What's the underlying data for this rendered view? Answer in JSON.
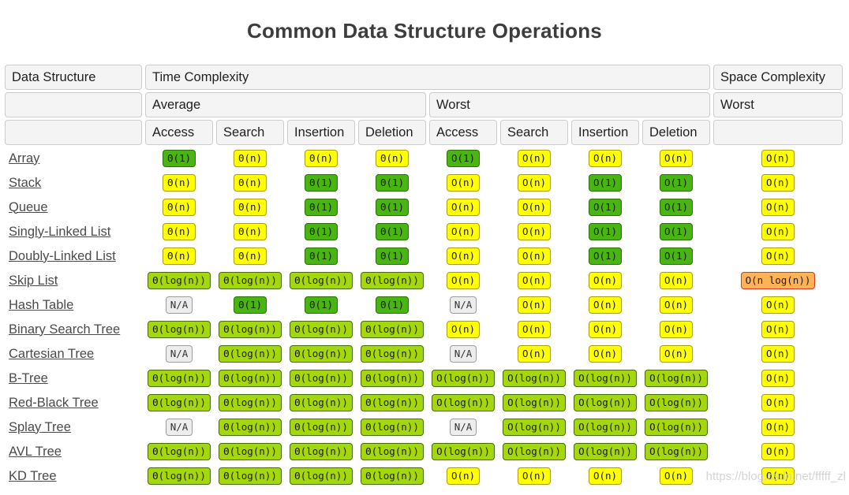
{
  "title": "Common Data Structure Operations",
  "watermark": "https://blog.csdn.net/fffff_zl",
  "colors": {
    "badge_green": "#48b512",
    "badge_yellow": "#ffff00",
    "badge_yellowgreen": "#a5d70e",
    "badge_orange": "#ffb356",
    "badge_na": "#ededed",
    "header_bg": "#f4f4f4",
    "header_border": "#cccccc",
    "link_text": "#4a4a4a",
    "title_text": "#3d3d3d"
  },
  "table": {
    "headers": {
      "data_structure": "Data Structure",
      "time_complexity": "Time Complexity",
      "space_complexity": "Space Complexity",
      "average": "Average",
      "worst": "Worst",
      "space_worst": "Worst",
      "ops": [
        "Access",
        "Search",
        "Insertion",
        "Deletion"
      ]
    },
    "rows": [
      {
        "name": "Array",
        "cells": [
          {
            "t": "Θ(1)",
            "c": "green"
          },
          {
            "t": "Θ(n)",
            "c": "yellow"
          },
          {
            "t": "Θ(n)",
            "c": "yellow"
          },
          {
            "t": "Θ(n)",
            "c": "yellow"
          },
          {
            "t": "O(1)",
            "c": "green"
          },
          {
            "t": "O(n)",
            "c": "yellow"
          },
          {
            "t": "O(n)",
            "c": "yellow"
          },
          {
            "t": "O(n)",
            "c": "yellow"
          },
          {
            "t": "O(n)",
            "c": "yellow"
          }
        ]
      },
      {
        "name": "Stack",
        "cells": [
          {
            "t": "Θ(n)",
            "c": "yellow"
          },
          {
            "t": "Θ(n)",
            "c": "yellow"
          },
          {
            "t": "Θ(1)",
            "c": "green"
          },
          {
            "t": "Θ(1)",
            "c": "green"
          },
          {
            "t": "O(n)",
            "c": "yellow"
          },
          {
            "t": "O(n)",
            "c": "yellow"
          },
          {
            "t": "O(1)",
            "c": "green"
          },
          {
            "t": "O(1)",
            "c": "green"
          },
          {
            "t": "O(n)",
            "c": "yellow"
          }
        ]
      },
      {
        "name": "Queue",
        "cells": [
          {
            "t": "Θ(n)",
            "c": "yellow"
          },
          {
            "t": "Θ(n)",
            "c": "yellow"
          },
          {
            "t": "Θ(1)",
            "c": "green"
          },
          {
            "t": "Θ(1)",
            "c": "green"
          },
          {
            "t": "O(n)",
            "c": "yellow"
          },
          {
            "t": "O(n)",
            "c": "yellow"
          },
          {
            "t": "O(1)",
            "c": "green"
          },
          {
            "t": "O(1)",
            "c": "green"
          },
          {
            "t": "O(n)",
            "c": "yellow"
          }
        ]
      },
      {
        "name": "Singly-Linked List",
        "cells": [
          {
            "t": "Θ(n)",
            "c": "yellow"
          },
          {
            "t": "Θ(n)",
            "c": "yellow"
          },
          {
            "t": "Θ(1)",
            "c": "green"
          },
          {
            "t": "Θ(1)",
            "c": "green"
          },
          {
            "t": "O(n)",
            "c": "yellow"
          },
          {
            "t": "O(n)",
            "c": "yellow"
          },
          {
            "t": "O(1)",
            "c": "green"
          },
          {
            "t": "O(1)",
            "c": "green"
          },
          {
            "t": "O(n)",
            "c": "yellow"
          }
        ]
      },
      {
        "name": "Doubly-Linked List",
        "cells": [
          {
            "t": "Θ(n)",
            "c": "yellow"
          },
          {
            "t": "Θ(n)",
            "c": "yellow"
          },
          {
            "t": "Θ(1)",
            "c": "green"
          },
          {
            "t": "Θ(1)",
            "c": "green"
          },
          {
            "t": "O(n)",
            "c": "yellow"
          },
          {
            "t": "O(n)",
            "c": "yellow"
          },
          {
            "t": "O(1)",
            "c": "green"
          },
          {
            "t": "O(1)",
            "c": "green"
          },
          {
            "t": "O(n)",
            "c": "yellow"
          }
        ]
      },
      {
        "name": "Skip List",
        "cells": [
          {
            "t": "Θ(log(n))",
            "c": "yellowgreen"
          },
          {
            "t": "Θ(log(n))",
            "c": "yellowgreen"
          },
          {
            "t": "Θ(log(n))",
            "c": "yellowgreen"
          },
          {
            "t": "Θ(log(n))",
            "c": "yellowgreen"
          },
          {
            "t": "O(n)",
            "c": "yellow"
          },
          {
            "t": "O(n)",
            "c": "yellow"
          },
          {
            "t": "O(n)",
            "c": "yellow"
          },
          {
            "t": "O(n)",
            "c": "yellow"
          },
          {
            "t": "O(n log(n))",
            "c": "orange"
          }
        ]
      },
      {
        "name": "Hash Table",
        "cells": [
          {
            "t": "N/A",
            "c": "na"
          },
          {
            "t": "Θ(1)",
            "c": "green"
          },
          {
            "t": "Θ(1)",
            "c": "green"
          },
          {
            "t": "Θ(1)",
            "c": "green"
          },
          {
            "t": "N/A",
            "c": "na"
          },
          {
            "t": "O(n)",
            "c": "yellow"
          },
          {
            "t": "O(n)",
            "c": "yellow"
          },
          {
            "t": "O(n)",
            "c": "yellow"
          },
          {
            "t": "O(n)",
            "c": "yellow"
          }
        ]
      },
      {
        "name": "Binary Search Tree",
        "cells": [
          {
            "t": "Θ(log(n))",
            "c": "yellowgreen"
          },
          {
            "t": "Θ(log(n))",
            "c": "yellowgreen"
          },
          {
            "t": "Θ(log(n))",
            "c": "yellowgreen"
          },
          {
            "t": "Θ(log(n))",
            "c": "yellowgreen"
          },
          {
            "t": "O(n)",
            "c": "yellow"
          },
          {
            "t": "O(n)",
            "c": "yellow"
          },
          {
            "t": "O(n)",
            "c": "yellow"
          },
          {
            "t": "O(n)",
            "c": "yellow"
          },
          {
            "t": "O(n)",
            "c": "yellow"
          }
        ]
      },
      {
        "name": "Cartesian Tree",
        "cells": [
          {
            "t": "N/A",
            "c": "na"
          },
          {
            "t": "Θ(log(n))",
            "c": "yellowgreen"
          },
          {
            "t": "Θ(log(n))",
            "c": "yellowgreen"
          },
          {
            "t": "Θ(log(n))",
            "c": "yellowgreen"
          },
          {
            "t": "N/A",
            "c": "na"
          },
          {
            "t": "O(n)",
            "c": "yellow"
          },
          {
            "t": "O(n)",
            "c": "yellow"
          },
          {
            "t": "O(n)",
            "c": "yellow"
          },
          {
            "t": "O(n)",
            "c": "yellow"
          }
        ]
      },
      {
        "name": "B-Tree",
        "cells": [
          {
            "t": "Θ(log(n))",
            "c": "yellowgreen"
          },
          {
            "t": "Θ(log(n))",
            "c": "yellowgreen"
          },
          {
            "t": "Θ(log(n))",
            "c": "yellowgreen"
          },
          {
            "t": "Θ(log(n))",
            "c": "yellowgreen"
          },
          {
            "t": "O(log(n))",
            "c": "yellowgreen"
          },
          {
            "t": "O(log(n))",
            "c": "yellowgreen"
          },
          {
            "t": "O(log(n))",
            "c": "yellowgreen"
          },
          {
            "t": "O(log(n))",
            "c": "yellowgreen"
          },
          {
            "t": "O(n)",
            "c": "yellow"
          }
        ]
      },
      {
        "name": "Red-Black Tree",
        "cells": [
          {
            "t": "Θ(log(n))",
            "c": "yellowgreen"
          },
          {
            "t": "Θ(log(n))",
            "c": "yellowgreen"
          },
          {
            "t": "Θ(log(n))",
            "c": "yellowgreen"
          },
          {
            "t": "Θ(log(n))",
            "c": "yellowgreen"
          },
          {
            "t": "O(log(n))",
            "c": "yellowgreen"
          },
          {
            "t": "O(log(n))",
            "c": "yellowgreen"
          },
          {
            "t": "O(log(n))",
            "c": "yellowgreen"
          },
          {
            "t": "O(log(n))",
            "c": "yellowgreen"
          },
          {
            "t": "O(n)",
            "c": "yellow"
          }
        ]
      },
      {
        "name": "Splay Tree",
        "cells": [
          {
            "t": "N/A",
            "c": "na"
          },
          {
            "t": "Θ(log(n))",
            "c": "yellowgreen"
          },
          {
            "t": "Θ(log(n))",
            "c": "yellowgreen"
          },
          {
            "t": "Θ(log(n))",
            "c": "yellowgreen"
          },
          {
            "t": "N/A",
            "c": "na"
          },
          {
            "t": "O(log(n))",
            "c": "yellowgreen"
          },
          {
            "t": "O(log(n))",
            "c": "yellowgreen"
          },
          {
            "t": "O(log(n))",
            "c": "yellowgreen"
          },
          {
            "t": "O(n)",
            "c": "yellow"
          }
        ]
      },
      {
        "name": "AVL Tree",
        "cells": [
          {
            "t": "Θ(log(n))",
            "c": "yellowgreen"
          },
          {
            "t": "Θ(log(n))",
            "c": "yellowgreen"
          },
          {
            "t": "Θ(log(n))",
            "c": "yellowgreen"
          },
          {
            "t": "Θ(log(n))",
            "c": "yellowgreen"
          },
          {
            "t": "O(log(n))",
            "c": "yellowgreen"
          },
          {
            "t": "O(log(n))",
            "c": "yellowgreen"
          },
          {
            "t": "O(log(n))",
            "c": "yellowgreen"
          },
          {
            "t": "O(log(n))",
            "c": "yellowgreen"
          },
          {
            "t": "O(n)",
            "c": "yellow"
          }
        ]
      },
      {
        "name": "KD Tree",
        "cells": [
          {
            "t": "Θ(log(n))",
            "c": "yellowgreen"
          },
          {
            "t": "Θ(log(n))",
            "c": "yellowgreen"
          },
          {
            "t": "Θ(log(n))",
            "c": "yellowgreen"
          },
          {
            "t": "Θ(log(n))",
            "c": "yellowgreen"
          },
          {
            "t": "O(n)",
            "c": "yellow"
          },
          {
            "t": "O(n)",
            "c": "yellow"
          },
          {
            "t": "O(n)",
            "c": "yellow"
          },
          {
            "t": "O(n)",
            "c": "yellow"
          },
          {
            "t": "O(n)",
            "c": "yellow"
          }
        ]
      }
    ]
  }
}
